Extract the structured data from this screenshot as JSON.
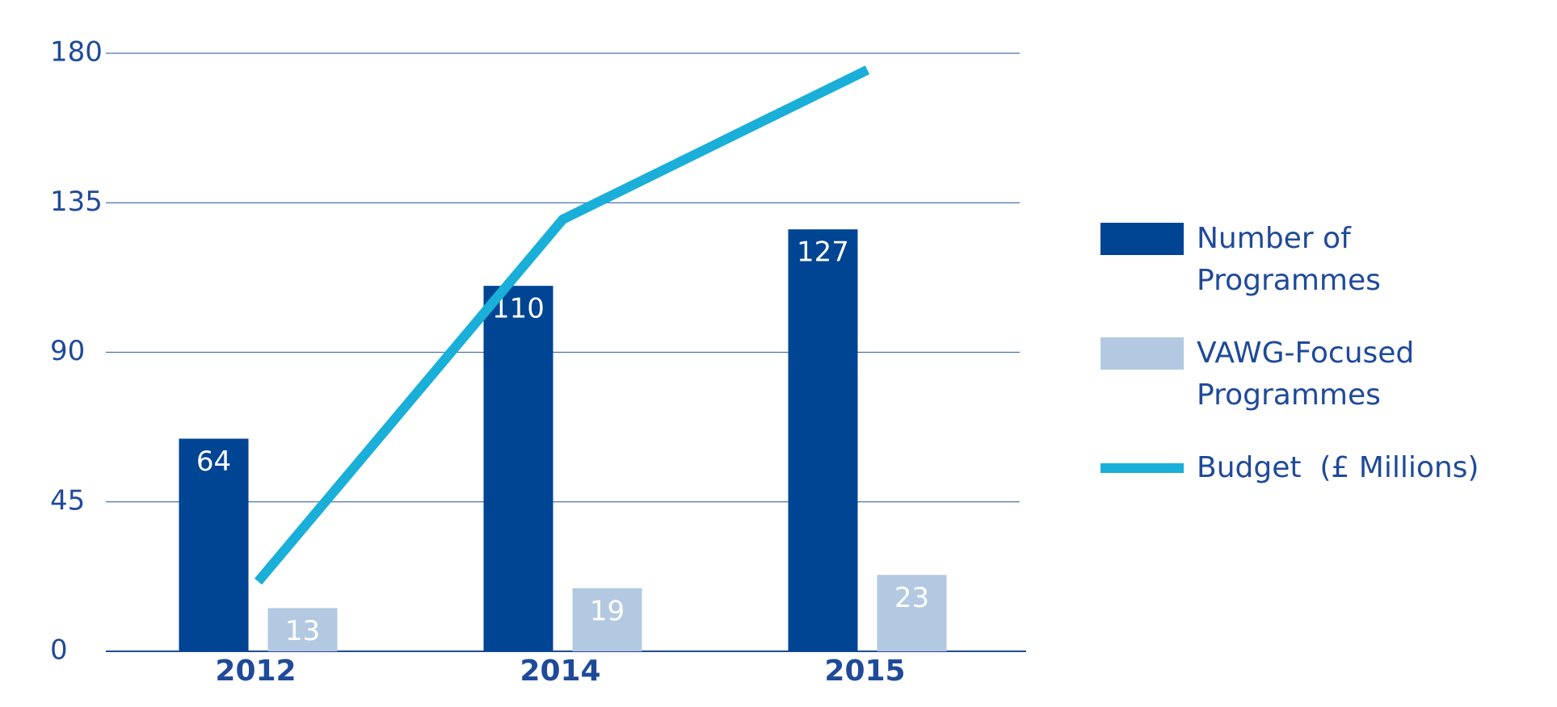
{
  "chart_data": {
    "type": "bar",
    "categories": [
      "2012",
      "2014",
      "2015"
    ],
    "series": [
      {
        "name": "Number of Programmes",
        "color": "#004494",
        "values": [
          64,
          110,
          127
        ],
        "type": "bar"
      },
      {
        "name": "VAWG-Focused Programmes",
        "color": "#b3c9e2",
        "values": [
          13,
          19,
          23
        ],
        "type": "bar"
      },
      {
        "name": "Budget  (£ Millions)",
        "color": "#1aafd8",
        "values": [
          21,
          130,
          175
        ],
        "type": "line"
      }
    ],
    "ylim": [
      0,
      180
    ],
    "yticks": [
      0,
      45,
      90,
      135,
      180
    ],
    "grid": true,
    "legend": "right"
  }
}
